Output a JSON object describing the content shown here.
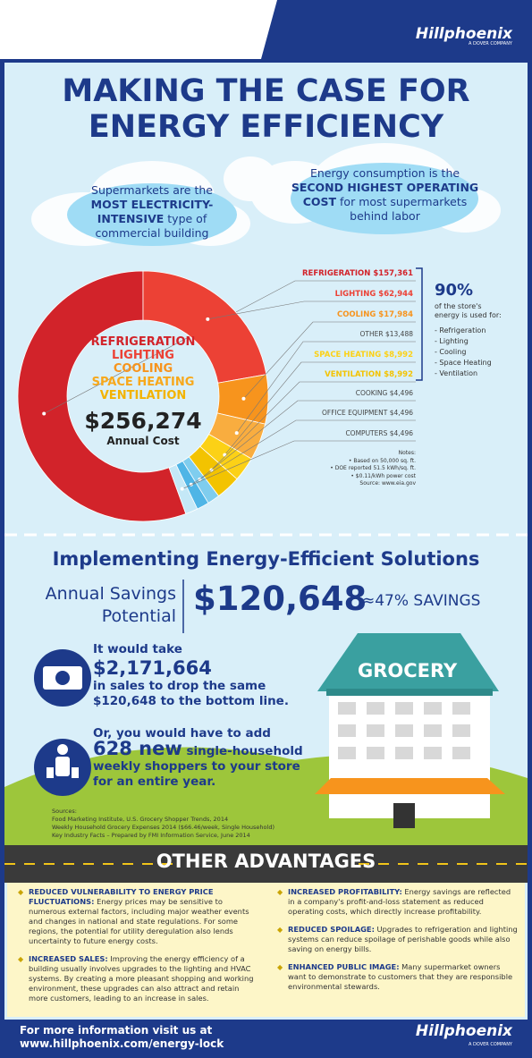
{
  "header": {
    "brand": "Hillphoenix",
    "tagline": "A DOVER COMPANY"
  },
  "title_lines": [
    "MAKING THE CASE FOR",
    "ENERGY EFFICIENCY"
  ],
  "callouts": [
    [
      "Supermarkets are the ",
      "MOST ELECTRICITY-INTENSIVE",
      " type of commercial building"
    ],
    [
      "Energy consumption is the ",
      "SECOND HIGHEST OPERATING COST",
      " for most supermarkets behind labor"
    ]
  ],
  "chart_data": {
    "type": "donut",
    "categories": [
      "REFRIGERATION",
      "LIGHTING",
      "COOLING",
      "OTHER",
      "SPACE HEATING",
      "VENTILATION",
      "COOKING",
      "OFFICE EQUIPMENT",
      "COMPUTERS"
    ],
    "values": [
      157361,
      62944,
      17984,
      13488,
      8992,
      8992,
      4496,
      4496,
      4496
    ],
    "value_labels": [
      "$157,361",
      "$62,944",
      "$17,984",
      "$13,488",
      "$8,992",
      "$8,992",
      "$4,496",
      "$4,496",
      "$4,496"
    ],
    "colors": [
      "#d2232a",
      "#ec4135",
      "#f7941d",
      "#f9ad3f",
      "#fcd116",
      "#f3c300",
      "#7fcdee",
      "#4fb5e6",
      "#c4e8f7"
    ],
    "center_labels": [
      "REFRIGERATION",
      "LIGHTING",
      "COOLING",
      "SPACE HEATING",
      "VENTILATION"
    ],
    "total_label": "$256,274",
    "total_caption": "Annual Cost",
    "share": "90%",
    "share_caption": "of the store's energy is used for:",
    "share_items": [
      "- Refrigeration",
      "- Lighting",
      "- Cooling",
      "- Space Heating",
      "- Ventilation"
    ],
    "notes_title": "Notes:",
    "notes": [
      "• Based on 50,000 sq. ft.",
      "• DOE reported 51.5 kWh/sq. ft.",
      "• $0.11/kWh power cost",
      "Source: www.eia.gov"
    ]
  },
  "solutions": {
    "heading": "Implementing Energy-Efficient Solutions",
    "savings_label": [
      "Annual Savings",
      "Potential"
    ],
    "savings": "$120,648",
    "percent": "≈47% SAVINGS",
    "fact1": {
      "lead": "It would take",
      "figure": "$2,171,664",
      "rest": "in sales to drop the same $120,648 to the bottom line."
    },
    "fact2": {
      "lead": "Or, you would have to add",
      "figure": "628 new",
      "rest": " single-household weekly shoppers to your store for an entire year."
    },
    "sign": "GROCERY",
    "sources_title": "Sources:",
    "sources": [
      "Food Marketing Institute, U.S. Grocery Shopper Trends, 2014",
      "Weekly Household Grocery Expenses 2014 ($66.46/week, Single Household)",
      "Key Industry Facts – Prepared by FMI Information Service, June 2014"
    ]
  },
  "advantages": {
    "title": "OTHER ADVANTAGES",
    "items": [
      {
        "heading": "REDUCED VULNERABILITY TO ENERGY PRICE FLUCTUATIONS:",
        "text": " Energy prices may be sensitive to numerous external factors, including major weather events and changes in national and state regulations. For some regions, the potential for utility deregulation also lends uncertainty to future energy costs."
      },
      {
        "heading": "INCREASED SALES:",
        "text": " Improving the energy efficiency of a building usually involves upgrades to the lighting and HVAC systems. By creating a more pleasant shopping and working environment, these upgrades can also attract and retain more customers, leading to an increase in sales."
      },
      {
        "heading": "INCREASED PROFITABILITY:",
        "text": " Energy savings are reflected in a company's profit-and-loss statement as reduced operating costs, which directly increase profitability."
      },
      {
        "heading": "REDUCED SPOILAGE:",
        "text": " Upgrades to refrigeration and lighting systems can reduce spoilage of perishable goods while also saving on energy bills."
      },
      {
        "heading": "ENHANCED PUBLIC IMAGE:",
        "text": " Many supermarket owners want to demonstrate to customers that they are responsible environmental stewards."
      }
    ]
  },
  "footer": {
    "lines": [
      "For more information visit us at",
      "www.hillphoenix.com/energy-lock"
    ],
    "brand": "Hillphoenix",
    "tagline": "A DOVER COMPANY"
  }
}
